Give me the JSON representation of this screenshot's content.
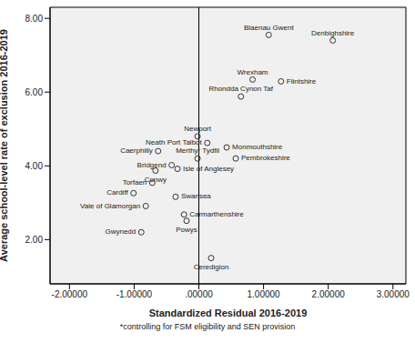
{
  "chart_data": {
    "type": "scatter",
    "x_label": "Standardized Residual 2016-2019",
    "y_label": "Average school-level rate of exclusion 2016-2019",
    "footnote": "*controlling for FSM eligibility and SEN provision",
    "labels": [
      "Blaenau Gwent",
      "Denbighshire",
      "Wrexham",
      "Flintshire",
      "Rhondda Cynon Taf",
      "Newport",
      "Neath Port Talbot",
      "Monmouthshire",
      "Caerphilly",
      "Merthyr Tydfil",
      "Pembrokeshire",
      "Bridgend",
      "Conwy",
      "Isle of Anglesey",
      "Torfaen",
      "Cardiff",
      "Swansea",
      "Vale of Glamorgan",
      "Carmarthenshire",
      "Powys",
      "Gwynedd",
      "Ceredigion"
    ],
    "x": [
      1.08,
      2.07,
      0.83,
      1.27,
      0.65,
      -0.02,
      0.13,
      0.43,
      -0.63,
      -0.02,
      0.57,
      -0.42,
      -0.67,
      -0.33,
      -0.72,
      -1.01,
      -0.36,
      -0.82,
      -0.23,
      -0.19,
      -0.89,
      0.19
    ],
    "values": [
      7.55,
      7.4,
      6.34,
      6.29,
      5.88,
      4.8,
      4.62,
      4.5,
      4.4,
      4.2,
      4.2,
      4.02,
      3.87,
      3.92,
      3.54,
      3.26,
      3.16,
      2.91,
      2.68,
      2.51,
      2.2,
      1.5
    ],
    "xlim": [
      -2.3,
      3.2
    ],
    "xticks": [
      {
        "value": -2,
        "label": "-2.00000"
      },
      {
        "value": -1,
        "label": "-1.00000"
      },
      {
        "value": 0,
        "label": ".00000"
      },
      {
        "value": 1,
        "label": "1.00000"
      },
      {
        "value": 2,
        "label": "2.00000"
      },
      {
        "value": 3,
        "label": "3.00000"
      }
    ],
    "ylim": [
      0.8,
      8.3
    ],
    "yticks": [
      {
        "value": 2,
        "label": "2.00"
      },
      {
        "value": 4,
        "label": "4.00"
      },
      {
        "value": 6,
        "label": "6.00"
      },
      {
        "value": 8,
        "label": "8.00"
      }
    ],
    "reference_lines": [
      {
        "x": 0
      }
    ],
    "marker": "circle",
    "color": "#333333",
    "grid": false
  }
}
